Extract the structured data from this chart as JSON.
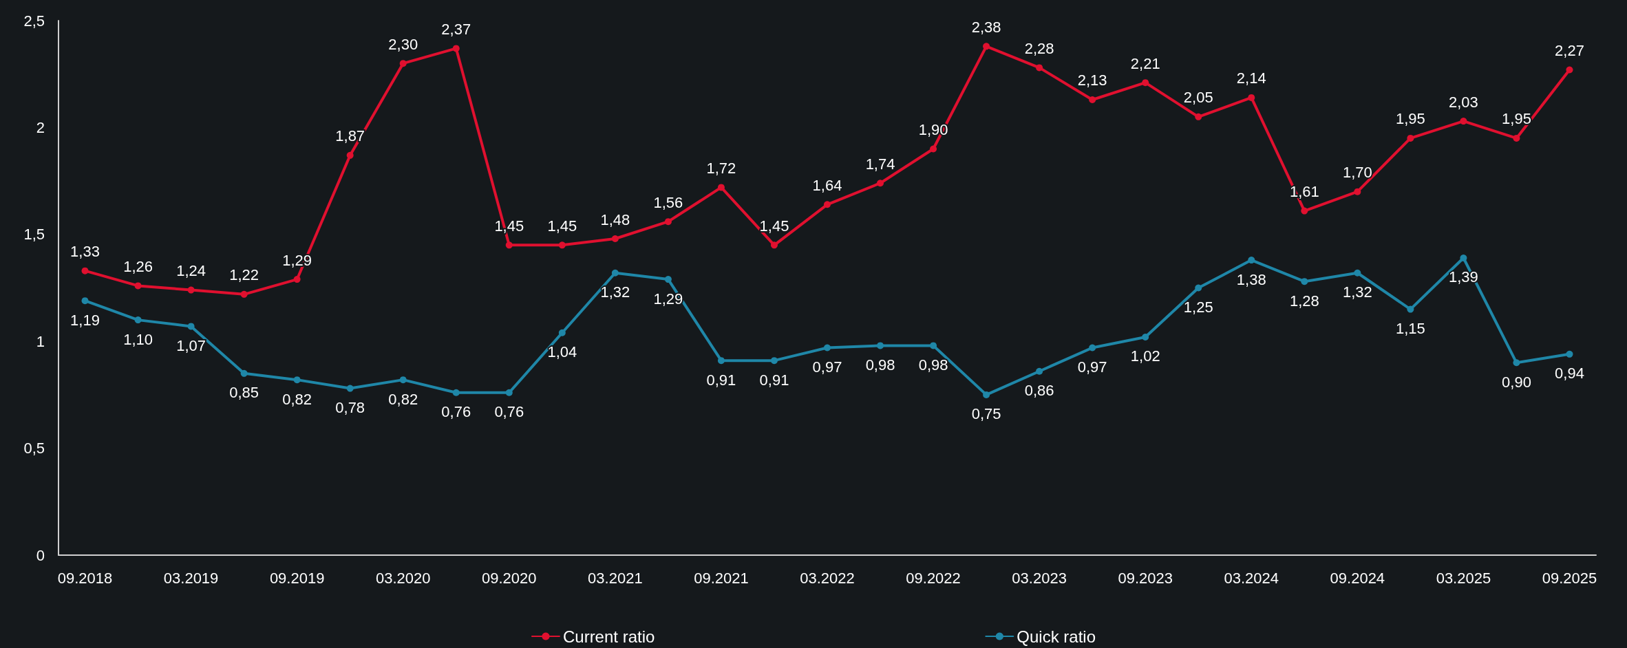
{
  "chart_data": {
    "type": "line",
    "categories": [
      "09.2018",
      null,
      "03.2019",
      null,
      "09.2019",
      null,
      "03.2020",
      null,
      "09.2020",
      null,
      "03.2021",
      null,
      "09.2021",
      null,
      "03.2022",
      null,
      "09.2022",
      null,
      "03.2023",
      null,
      "09.2023",
      null,
      "03.2024",
      null,
      "09.2024",
      null,
      "03.2025",
      null,
      "09.2025"
    ],
    "series": [
      {
        "name": "Current ratio",
        "color": "#e0102f",
        "values": [
          1.33,
          1.26,
          1.24,
          1.22,
          1.29,
          1.87,
          2.3,
          2.37,
          1.45,
          1.45,
          1.48,
          1.56,
          1.72,
          1.45,
          1.64,
          1.74,
          1.9,
          2.38,
          2.28,
          2.13,
          2.21,
          2.05,
          2.14,
          1.61,
          1.7,
          1.95,
          2.03,
          1.95,
          2.27
        ],
        "value_labels": [
          "1,33",
          "1,26",
          "1,24",
          "1,22",
          "1,29",
          "1,87",
          "2,30",
          "2,37",
          "1,45",
          "1,45",
          "1,48",
          "1,56",
          "1,72",
          "1,45",
          "1,64",
          "1,74",
          "1,90",
          "2,38",
          "2,28",
          "2,13",
          "2,21",
          "2,05",
          "2,14",
          "1,61",
          "1,70",
          "1,95",
          "2,03",
          "1,95",
          "2,27"
        ]
      },
      {
        "name": "Quick ratio",
        "color": "#1f87a8",
        "values": [
          1.19,
          1.1,
          1.07,
          0.85,
          0.82,
          0.78,
          0.82,
          0.76,
          0.76,
          1.04,
          1.32,
          1.29,
          0.91,
          0.91,
          0.97,
          0.98,
          0.98,
          0.75,
          0.86,
          0.97,
          1.02,
          1.25,
          1.38,
          1.28,
          1.32,
          1.15,
          1.39,
          0.9,
          0.94
        ],
        "value_labels": [
          "1,19",
          "1,10",
          "1,07",
          "0,85",
          "0,82",
          "0,78",
          "0,82",
          "0,76",
          "0,76",
          "1,04",
          "1,32",
          "1,29",
          "0,91",
          "0,91",
          "0,97",
          "0,98",
          "0,98",
          "0,75",
          "0,86",
          "0,97",
          "1,02",
          "1,25",
          "1,38",
          "1,28",
          "1,32",
          "1,15",
          "1,39",
          "0,90",
          "0,94"
        ]
      }
    ],
    "ylim": [
      0,
      2.5
    ],
    "yticks": [
      0,
      {
        "value": 0.5,
        "label": "0,5"
      },
      1,
      {
        "value": 1.5,
        "label": "1,5"
      },
      2,
      {
        "value": 2.5,
        "label": "2,5"
      }
    ],
    "grid": false,
    "legend": "bottom",
    "marker": "circle",
    "line_style": "solid"
  }
}
